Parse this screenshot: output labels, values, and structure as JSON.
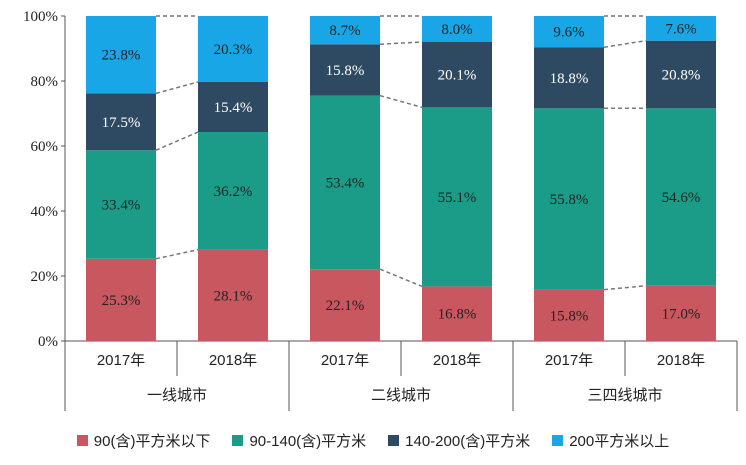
{
  "chart_data": {
    "type": "bar",
    "stacked": true,
    "percent": true,
    "ylim": [
      0,
      100
    ],
    "yticks": [
      "0%",
      "20%",
      "40%",
      "60%",
      "80%",
      "100%"
    ],
    "groups": [
      {
        "name": "一线城市",
        "years": [
          "2017年",
          "2018年"
        ]
      },
      {
        "name": "二线城市",
        "years": [
          "2017年",
          "2018年"
        ]
      },
      {
        "name": "三四线城市",
        "years": [
          "2017年",
          "2018年"
        ]
      }
    ],
    "series": [
      {
        "name": "90(含)平方米以下",
        "color": "#C9575F",
        "values": [
          25.3,
          28.1,
          22.1,
          16.8,
          15.8,
          17.0
        ],
        "labels": [
          "25.3%",
          "28.1%",
          "22.1%",
          "16.8%",
          "15.8%",
          "17.0%"
        ]
      },
      {
        "name": "90-140(含)平方米",
        "color": "#1A9C88",
        "values": [
          33.4,
          36.2,
          53.4,
          55.1,
          55.8,
          54.6
        ],
        "labels": [
          "33.4%",
          "36.2%",
          "53.4%",
          "55.1%",
          "55.8%",
          "54.6%"
        ]
      },
      {
        "name": "140-200(含)平方米",
        "color": "#2E4A62",
        "values": [
          17.5,
          15.4,
          15.8,
          20.1,
          18.8,
          20.8
        ],
        "labels": [
          "17.5%",
          "15.4%",
          "15.8%",
          "20.1%",
          "18.8%",
          "20.8%"
        ]
      },
      {
        "name": "200平方米以上",
        "color": "#18A6E6",
        "values": [
          23.8,
          20.3,
          8.7,
          8.0,
          9.6,
          7.6
        ],
        "labels": [
          "23.8%",
          "20.3%",
          "8.7%",
          "8.0%",
          "9.6%",
          "7.6%"
        ]
      }
    ],
    "connector_lines": true,
    "legend_position": "bottom"
  }
}
